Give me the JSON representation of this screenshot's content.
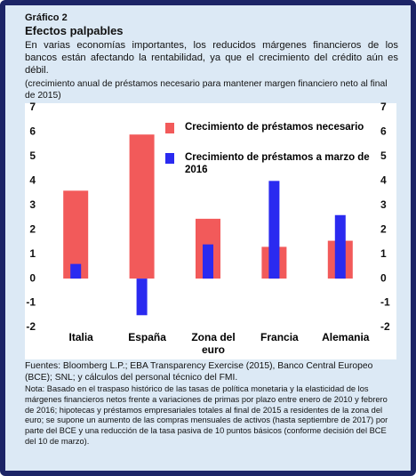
{
  "chart_data": {
    "type": "bar",
    "label": "Gráfico 2",
    "title": "Efectos palpables",
    "description": "En varias economías importantes, los reducidos márgenes financieros de los bancos están afectando la rentabilidad, ya que el crecimiento del crédito aún es débil.",
    "subtitle": "(crecimiento anual de préstamos necesario para mantener margen financiero neto al final de 2015)",
    "categories": [
      "Italia",
      "España",
      "Zona del euro",
      "Francia",
      "Alemania"
    ],
    "series": [
      {
        "name": "Crecimiento de préstamos necesario",
        "color": "#f25a5a",
        "values": [
          3.6,
          5.9,
          2.45,
          1.3,
          1.55
        ]
      },
      {
        "name": "Crecimiento de préstamos a marzo de 2016",
        "color": "#2a2af0",
        "values": [
          0.6,
          -1.5,
          1.4,
          4.0,
          2.6
        ]
      }
    ],
    "ylim": [
      -2,
      7
    ],
    "yticks": [
      -2,
      -1,
      0,
      1,
      2,
      3,
      4,
      5,
      6,
      7
    ],
    "y2lim": [
      -2,
      7
    ],
    "y2ticks": [
      -2,
      -1,
      0,
      1,
      2,
      3,
      4,
      5,
      6,
      7
    ],
    "sources": "Fuentes: Bloomberg L.P.; EBA Transparency Exercise (2015), Banco Central Europeo (BCE); SNL; y cálculos del personal técnico del FMI.",
    "note": "Nota: Basado en el traspaso histórico de las tasas de política monetaria y la elasticidad de los márgenes financieros netos frente a variaciones de primas por plazo entre enero de 2010 y febrero de 2016; hipotecas y préstamos empresariales totales al final de 2015 a residentes de la zona del euro; se supone un aumento de las compras mensuales de activos (hasta septiembre de 2017) por parte del BCE y una reducción de la tasa pasiva de 10 puntos básicos (conforme decisión del BCE del 10 de marzo)."
  }
}
